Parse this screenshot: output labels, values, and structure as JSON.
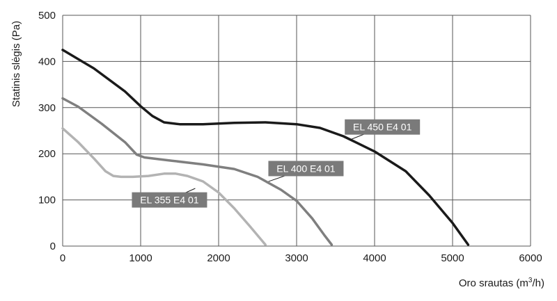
{
  "chart_data": {
    "type": "line",
    "title": "",
    "xlabel": "Oro srautas (m³/h)",
    "xlabel_parts": {
      "main": "Oro srautas (m",
      "sup": "3",
      "tail": "/h)"
    },
    "ylabel": "Statinis slėgis (Pa)",
    "xlim": [
      0,
      6000
    ],
    "ylim": [
      0,
      500
    ],
    "x_ticks": [
      0,
      1000,
      2000,
      3000,
      4000,
      5000,
      6000
    ],
    "y_ticks": [
      0,
      100,
      200,
      300,
      400,
      500
    ],
    "grid": true,
    "series": [
      {
        "name": "EL 450 E4 01",
        "color": "#1a1a1a",
        "label_at": [
          4100,
          258
        ],
        "leader_to": [
          3680,
          230
        ],
        "points": [
          [
            0,
            425
          ],
          [
            400,
            385
          ],
          [
            800,
            335
          ],
          [
            1000,
            303
          ],
          [
            1150,
            282
          ],
          [
            1300,
            268
          ],
          [
            1500,
            264
          ],
          [
            1800,
            264
          ],
          [
            2200,
            267
          ],
          [
            2600,
            268
          ],
          [
            3000,
            264
          ],
          [
            3300,
            256
          ],
          [
            3600,
            238
          ],
          [
            4000,
            205
          ],
          [
            4400,
            162
          ],
          [
            4700,
            110
          ],
          [
            5000,
            50
          ],
          [
            5200,
            3
          ]
        ]
      },
      {
        "name": "EL 400 E4 01",
        "color": "#7f7f7f",
        "label_at": [
          3120,
          168
        ],
        "leader_to": [
          2640,
          140
        ],
        "points": [
          [
            0,
            320
          ],
          [
            200,
            302
          ],
          [
            500,
            265
          ],
          [
            800,
            225
          ],
          [
            950,
            198
          ],
          [
            1050,
            192
          ],
          [
            1400,
            185
          ],
          [
            1800,
            177
          ],
          [
            2200,
            167
          ],
          [
            2500,
            150
          ],
          [
            2800,
            122
          ],
          [
            3000,
            98
          ],
          [
            3200,
            60
          ],
          [
            3350,
            25
          ],
          [
            3450,
            3
          ]
        ]
      },
      {
        "name": "EL 355 E4 01",
        "color": "#b3b3b3",
        "label_at": [
          1370,
          100
        ],
        "leader_to": [
          1700,
          125
        ],
        "points": [
          [
            0,
            255
          ],
          [
            200,
            225
          ],
          [
            400,
            190
          ],
          [
            550,
            162
          ],
          [
            650,
            152
          ],
          [
            750,
            150
          ],
          [
            900,
            150
          ],
          [
            1100,
            152
          ],
          [
            1300,
            157
          ],
          [
            1450,
            157
          ],
          [
            1600,
            152
          ],
          [
            1800,
            140
          ],
          [
            2000,
            116
          ],
          [
            2200,
            82
          ],
          [
            2400,
            43
          ],
          [
            2600,
            3
          ]
        ]
      }
    ]
  }
}
